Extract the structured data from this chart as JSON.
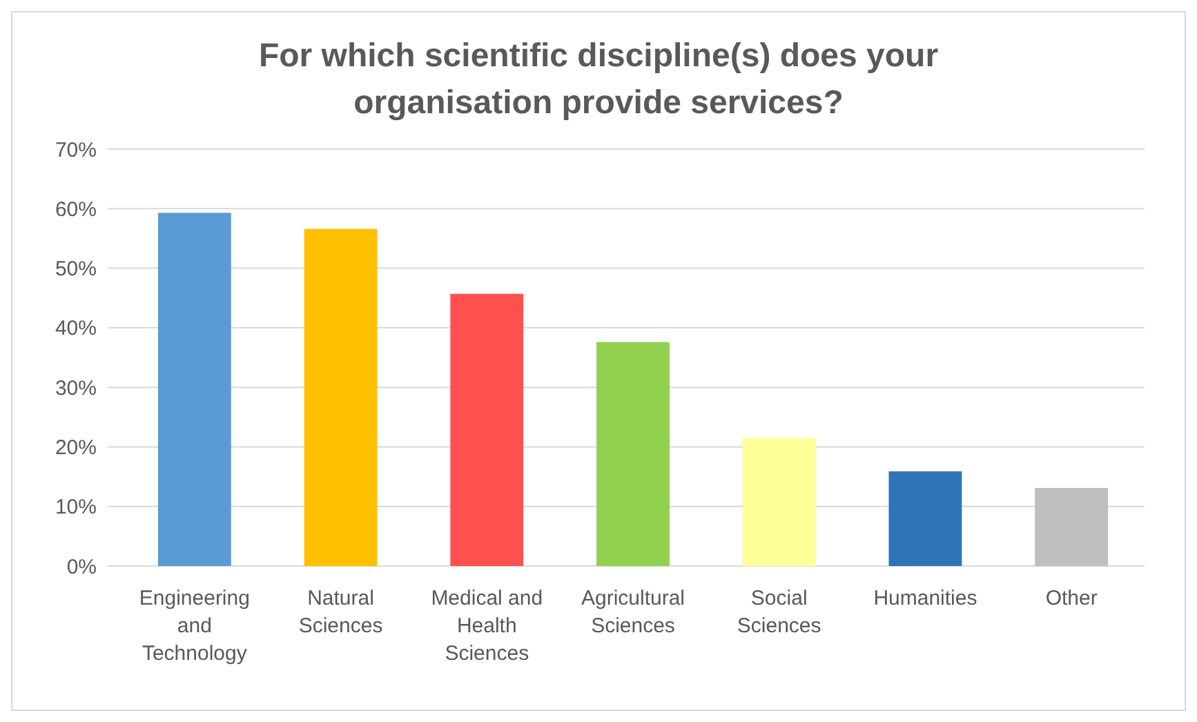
{
  "chart_data": {
    "type": "bar",
    "title": "For which scientific discipline(s) does your organisation provide services?",
    "categories": [
      "Engineering and Technology",
      "Natural Sciences",
      "Medical and Health Sciences",
      "Agricultural Sciences",
      "Social Sciences",
      "Humanities",
      "Other"
    ],
    "values": [
      59.3,
      56.6,
      45.7,
      37.6,
      21.5,
      15.9,
      13.1
    ],
    "colors": [
      "#5b9bd5",
      "#ffc000",
      "#ff5050",
      "#92d050",
      "#ffff99",
      "#2e75b6",
      "#bfbfbf"
    ],
    "ylim": [
      0,
      70
    ],
    "yticks": [
      {
        "value": 0,
        "label": "0%"
      },
      {
        "value": 10,
        "label": "10%"
      },
      {
        "value": 20,
        "label": "20%"
      },
      {
        "value": 30,
        "label": "30%"
      },
      {
        "value": 40,
        "label": "40%"
      },
      {
        "value": 50,
        "label": "50%"
      },
      {
        "value": 60,
        "label": "60%"
      },
      {
        "value": 70,
        "label": "70%"
      }
    ],
    "grid": "y"
  }
}
